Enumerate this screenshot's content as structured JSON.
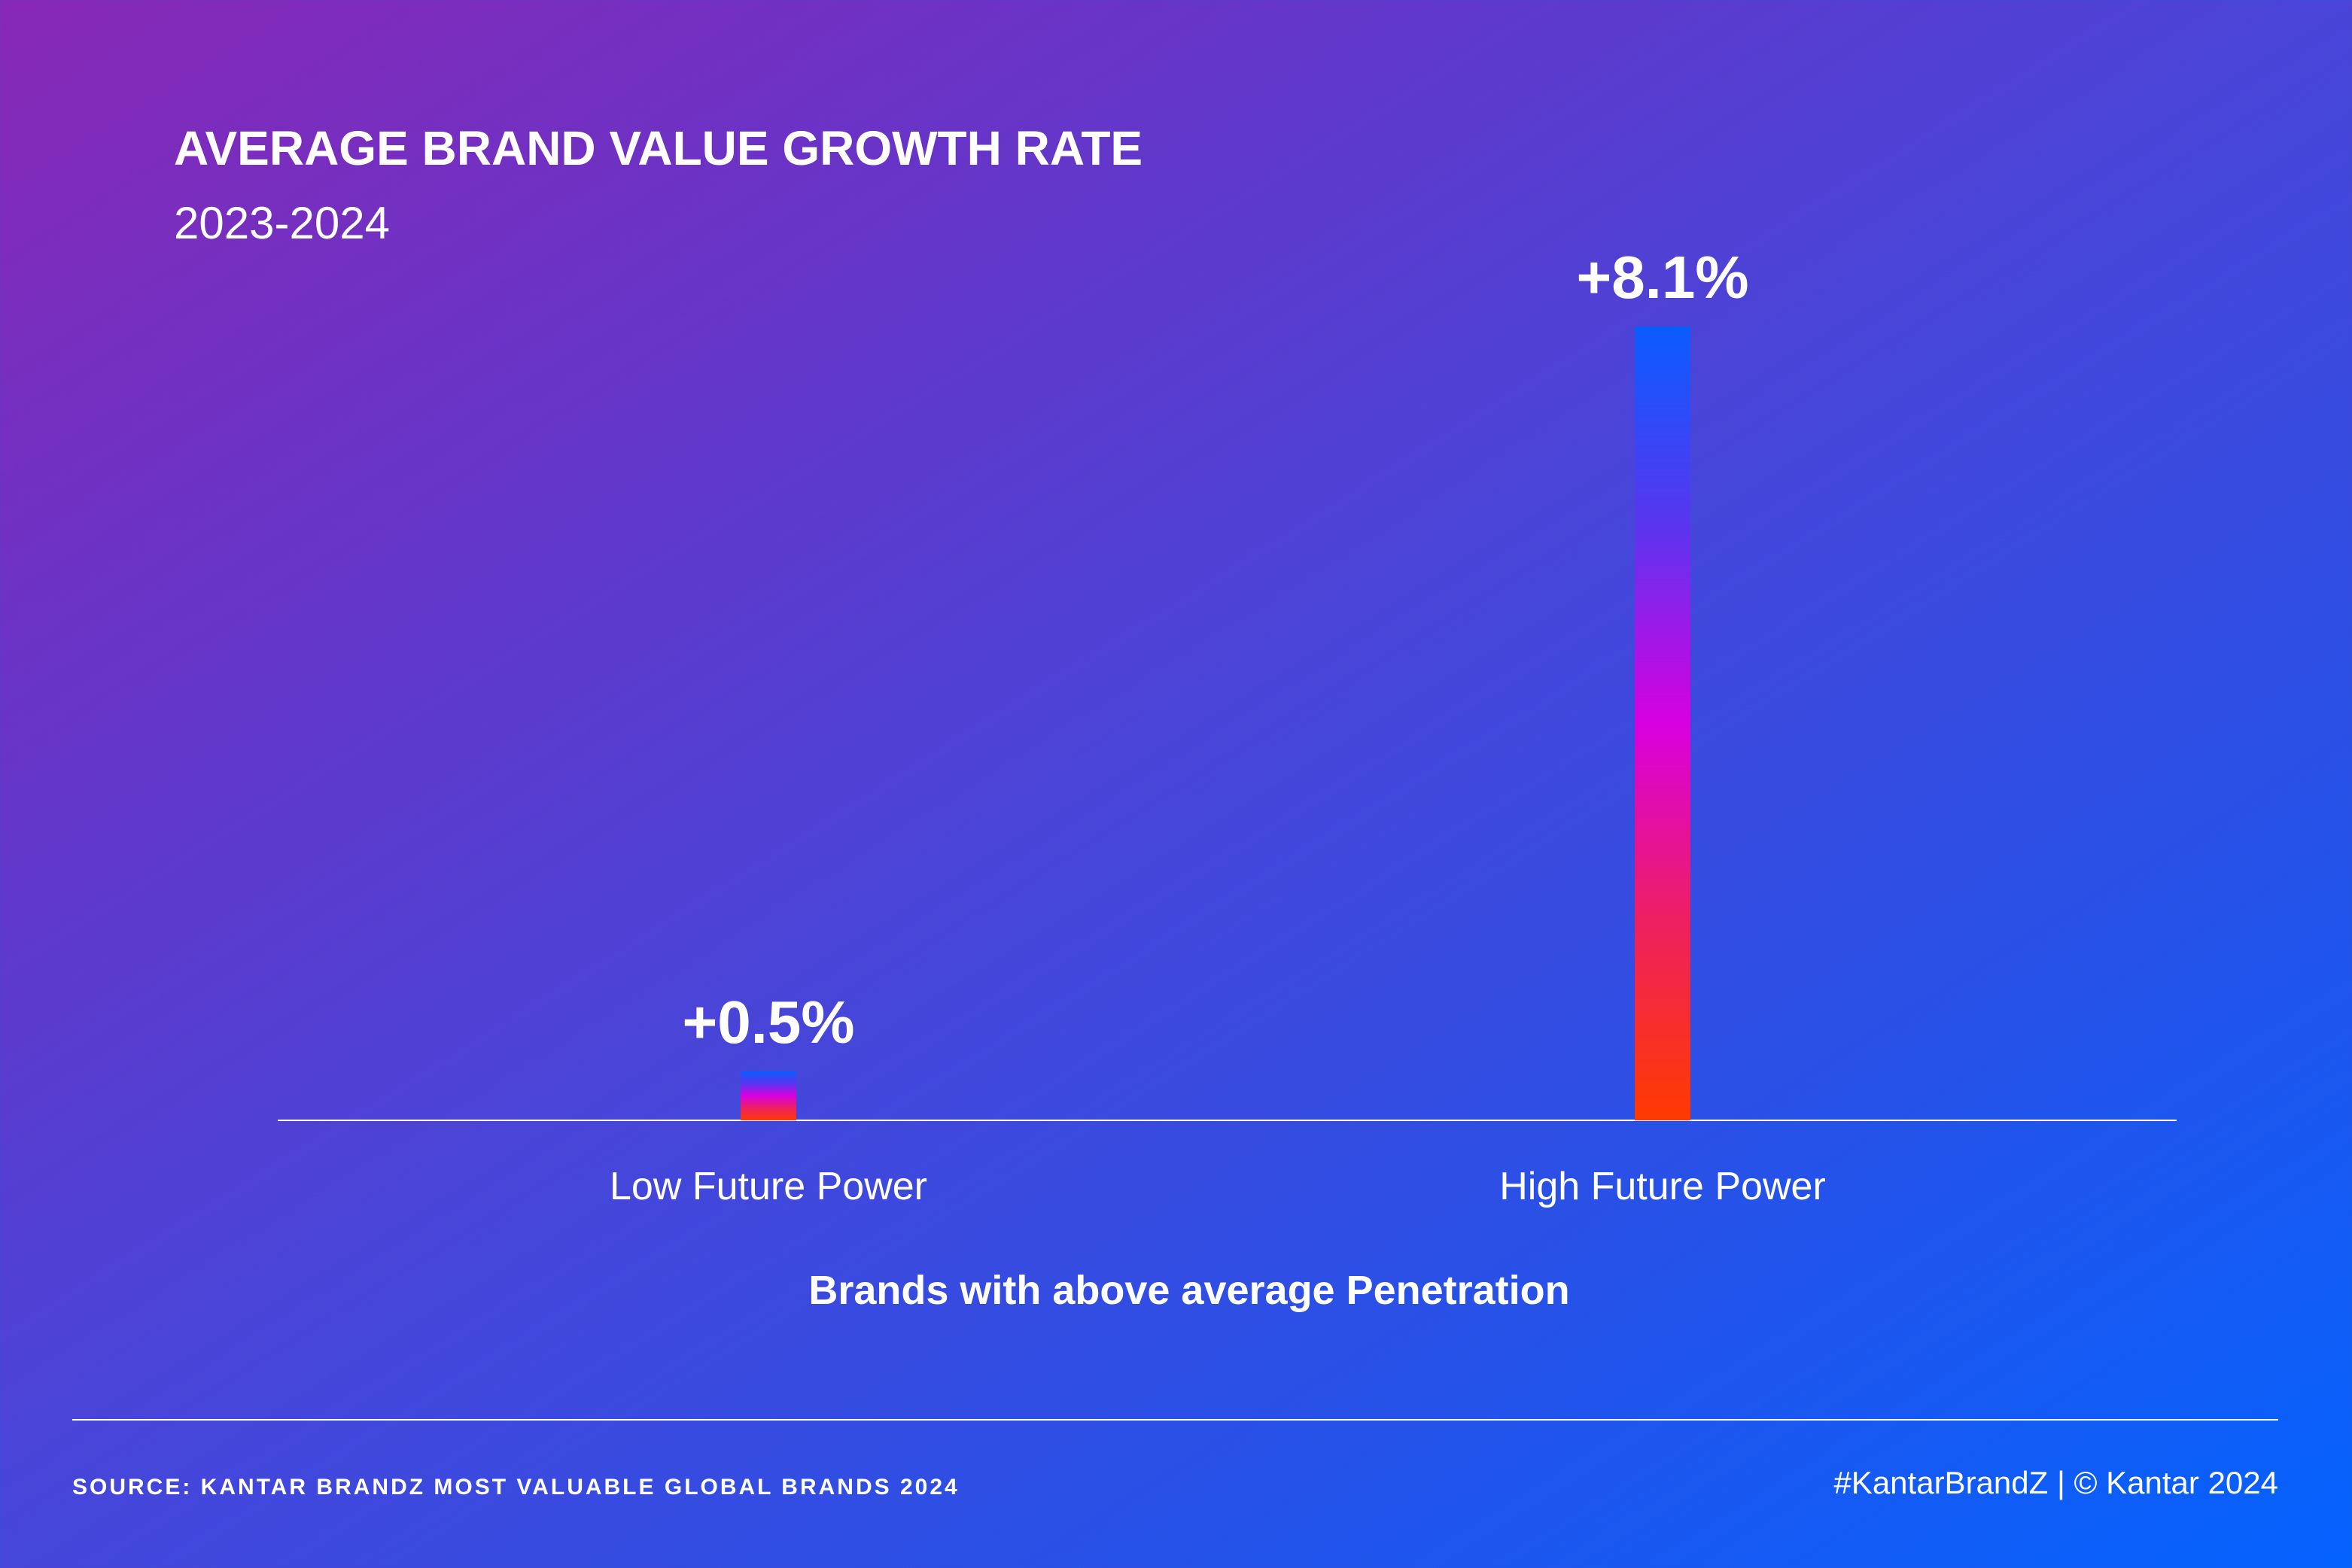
{
  "chart_data": {
    "type": "bar",
    "title": "AVERAGE BRAND VALUE GROWTH RATE",
    "subtitle": "2023-2024",
    "categories": [
      "Low Future Power",
      "High Future Power"
    ],
    "values": [
      0.5,
      8.1
    ],
    "data_labels": [
      "+0.5%",
      "+8.1%"
    ],
    "xlabel": "Brands with above average Penetration",
    "ylabel": "",
    "ylim": [
      0,
      8.1
    ],
    "grid": false,
    "colors": {
      "background_start": "#8828b6",
      "background_end": "#0362fe",
      "bar_gradient": [
        "#0a5cff",
        "#5a35ef",
        "#d800e0",
        "#ee2060",
        "#ff3a00"
      ]
    }
  },
  "footer": {
    "source": "SOURCE: KANTAR BRANDZ MOST VALUABLE GLOBAL BRANDS 2024",
    "credit": "#KantarBrandZ | © Kantar 2024"
  }
}
